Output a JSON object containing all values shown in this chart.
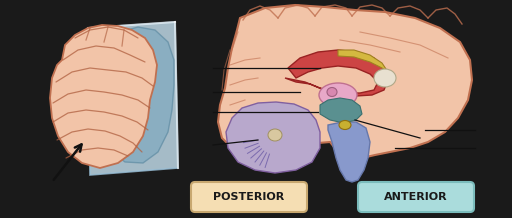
{
  "background_color": "#1a1a1a",
  "posterior_label": "POSTERIOR",
  "anterior_label": "ANTERIOR",
  "posterior_box_color": "#f5deb3",
  "anterior_box_color": "#aadcdc",
  "posterior_box_edge": "#c8a870",
  "anterior_box_edge": "#7bbcbc",
  "label_fontsize": 8,
  "label_font_weight": "bold",
  "label_text_color": "#1a1a1a",
  "arrow_color": "#111111",
  "plane_color": "#c5e0ee",
  "line_color": "#111111"
}
